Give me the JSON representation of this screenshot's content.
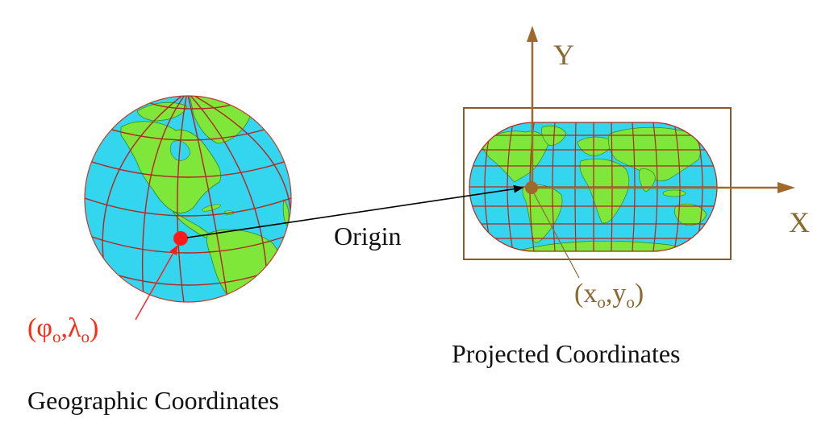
{
  "labels": {
    "y_axis": "Y",
    "x_axis": "X",
    "origin": "Origin",
    "geographic_title": "Geographic Coordinates",
    "projected_title": "Projected Coordinates"
  },
  "geo_point": {
    "open": "(",
    "phi": "φ",
    "sub1": "o",
    "comma": ",",
    "lambda": "λ",
    "sub2": "o",
    "close": ")"
  },
  "proj_point": {
    "open": "(",
    "x": "x",
    "sub1": "o",
    "comma": ",",
    "y": "y",
    "sub2": "o",
    "close": ")"
  },
  "colors": {
    "ocean": "#33d6ee",
    "land": "#7fe63a",
    "grid": "#b3261e",
    "geo_point": "#ff1a1a",
    "geo_label": "#ff2a12",
    "axis": "#a0682a",
    "proj_label": "#8a6a2e",
    "text": "#111111"
  }
}
